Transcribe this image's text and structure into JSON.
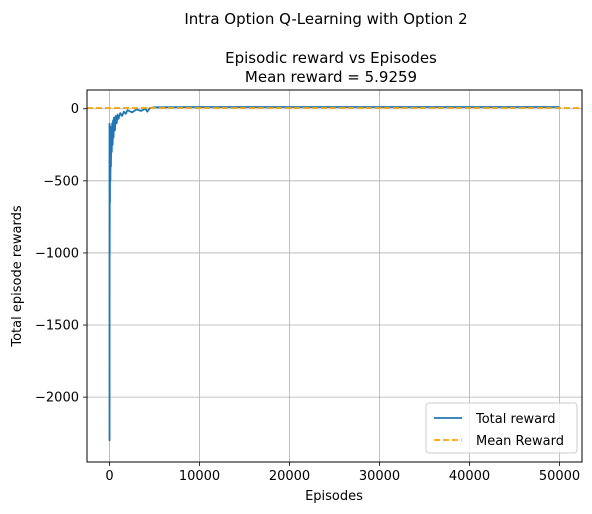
{
  "figure": {
    "suptitle": "Intra Option Q-Learning with Option 2"
  },
  "chart_data": {
    "type": "line",
    "title": "Episodic reward vs Episodes",
    "subtitle": "Mean reward = 5.9259",
    "xlabel": "Episodes",
    "ylabel": "Total episode rewards",
    "xlim": [
      -2500,
      52500
    ],
    "ylim": [
      -2450,
      130
    ],
    "xticks": [
      0,
      10000,
      20000,
      30000,
      40000,
      50000
    ],
    "yticks": [
      0,
      -500,
      -1000,
      -1500,
      -2000
    ],
    "xtick_labels": [
      "0",
      "10000",
      "20000",
      "30000",
      "40000",
      "50000"
    ],
    "ytick_labels": [
      "0",
      "−500",
      "−1000",
      "−1500",
      "−2000"
    ],
    "grid": true,
    "legend": {
      "placement": "lower-right",
      "entries": [
        "Total reward",
        "Mean Reward"
      ]
    },
    "colors": {
      "total_reward": "#1f77b4",
      "mean_reward": "#ffa500"
    },
    "series": [
      {
        "name": "Total reward",
        "style": "solid",
        "x": [
          0,
          5,
          10,
          20,
          30,
          50,
          70,
          100,
          130,
          160,
          200,
          250,
          300,
          350,
          400,
          450,
          500,
          600,
          700,
          800,
          900,
          1000,
          1200,
          1400,
          1600,
          1800,
          2000,
          2500,
          3000,
          3500,
          4000,
          4200,
          4500,
          5000,
          10000,
          20000,
          30000,
          40000,
          50000
        ],
        "y": [
          -100,
          -2300,
          -300,
          -1000,
          -150,
          -650,
          -120,
          -500,
          -200,
          -400,
          -130,
          -300,
          -100,
          -250,
          -80,
          -200,
          -60,
          -150,
          -50,
          -100,
          -40,
          -70,
          -30,
          -50,
          -20,
          -35,
          -10,
          -25,
          -5,
          -15,
          0,
          -20,
          5,
          10,
          12,
          12,
          12,
          12,
          12
        ]
      },
      {
        "name": "Mean Reward",
        "style": "dashed",
        "x": [
          -2500,
          52500
        ],
        "y": [
          5.9259,
          5.9259
        ]
      }
    ]
  }
}
